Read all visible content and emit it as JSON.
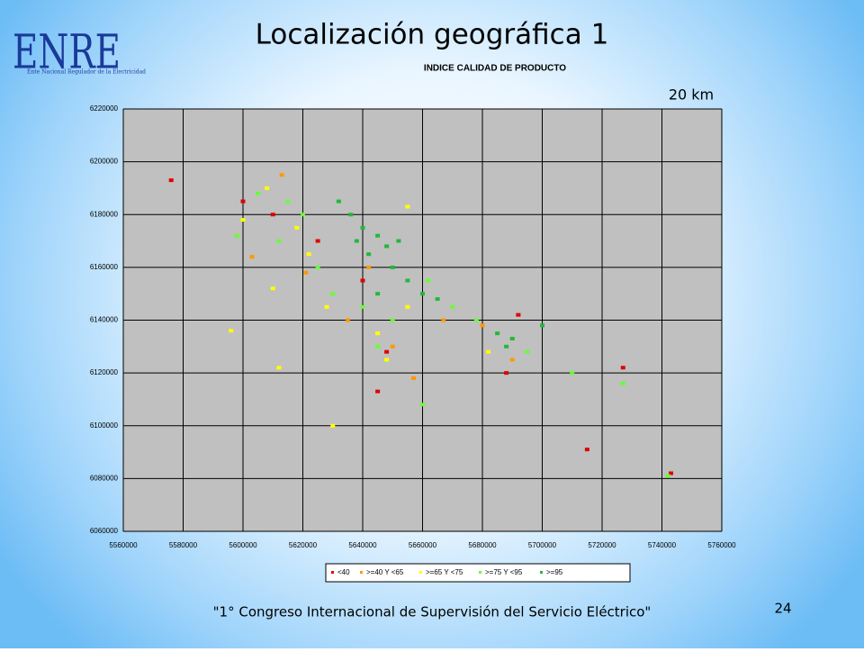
{
  "logo": {
    "text": "ENRE",
    "subtitle": "Ente Nacional Regulador de la Electricidad"
  },
  "chart_data": {
    "type": "scatter",
    "title": "Localización geográfica 1",
    "subtitle": "INDICE CALIDAD DE PRODUCTO",
    "annotation": "20 km",
    "xlim": [
      5560000,
      5760000
    ],
    "ylim": [
      6060000,
      6220000
    ],
    "xticks": [
      5560000,
      5580000,
      5600000,
      5620000,
      5640000,
      5660000,
      5680000,
      5700000,
      5720000,
      5740000,
      5760000
    ],
    "yticks": [
      6060000,
      6080000,
      6100000,
      6120000,
      6140000,
      6160000,
      6180000,
      6200000,
      6220000
    ],
    "grid": true,
    "legend": "bottom",
    "series": [
      {
        "name": "<40",
        "color": "#e00000",
        "x": [
          5576000,
          5610000,
          5625000,
          5640000,
          5648000,
          5688000,
          5715000,
          5727000,
          5743000,
          5645000,
          5600000,
          5692000
        ],
        "values": [
          6193000,
          6180000,
          6170000,
          6155000,
          6128000,
          6120000,
          6091000,
          6122000,
          6082000,
          6113000,
          6185000,
          6142000
        ]
      },
      {
        "name": ">=40 Y <65",
        "color": "#ff9900",
        "x": [
          5613000,
          5621000,
          5635000,
          5650000,
          5667000,
          5680000,
          5603000,
          5642000,
          5690000,
          5657000
        ],
        "values": [
          6195000,
          6158000,
          6140000,
          6130000,
          6140000,
          6138000,
          6164000,
          6160000,
          6125000,
          6118000
        ]
      },
      {
        "name": ">=65 Y <75",
        "color": "#ffff00",
        "x": [
          5608000,
          5618000,
          5622000,
          5628000,
          5645000,
          5648000,
          5655000,
          5610000,
          5596000,
          5612000,
          5682000,
          5600000,
          5655000,
          5630000
        ],
        "values": [
          6190000,
          6175000,
          6165000,
          6145000,
          6135000,
          6125000,
          6145000,
          6152000,
          6136000,
          6122000,
          6128000,
          6178000,
          6183000,
          6100000
        ]
      },
      {
        "name": ">=75 Y <95",
        "color": "#66ff33",
        "x": [
          5620000,
          5615000,
          5612000,
          5625000,
          5630000,
          5640000,
          5650000,
          5662000,
          5670000,
          5678000,
          5695000,
          5727000,
          5742000,
          5598000,
          5605000,
          5660000,
          5645000,
          5710000
        ],
        "values": [
          6180000,
          6185000,
          6170000,
          6160000,
          6150000,
          6145000,
          6140000,
          6155000,
          6145000,
          6140000,
          6128000,
          6116000,
          6081000,
          6172000,
          6188000,
          6108000,
          6130000,
          6120000
        ]
      },
      {
        "name": ">=95",
        "color": "#22b83a",
        "x": [
          5640000,
          5645000,
          5648000,
          5650000,
          5655000,
          5660000,
          5665000,
          5636000,
          5632000,
          5685000,
          5690000,
          5688000,
          5700000,
          5642000,
          5652000,
          5638000,
          5645000
        ],
        "values": [
          6175000,
          6172000,
          6168000,
          6160000,
          6155000,
          6150000,
          6148000,
          6180000,
          6185000,
          6135000,
          6133000,
          6130000,
          6138000,
          6165000,
          6170000,
          6170000,
          6150000
        ]
      }
    ]
  },
  "footer": {
    "text": "\"1° Congreso Internacional de Supervisión del Servicio Eléctrico\"",
    "page": "24"
  }
}
